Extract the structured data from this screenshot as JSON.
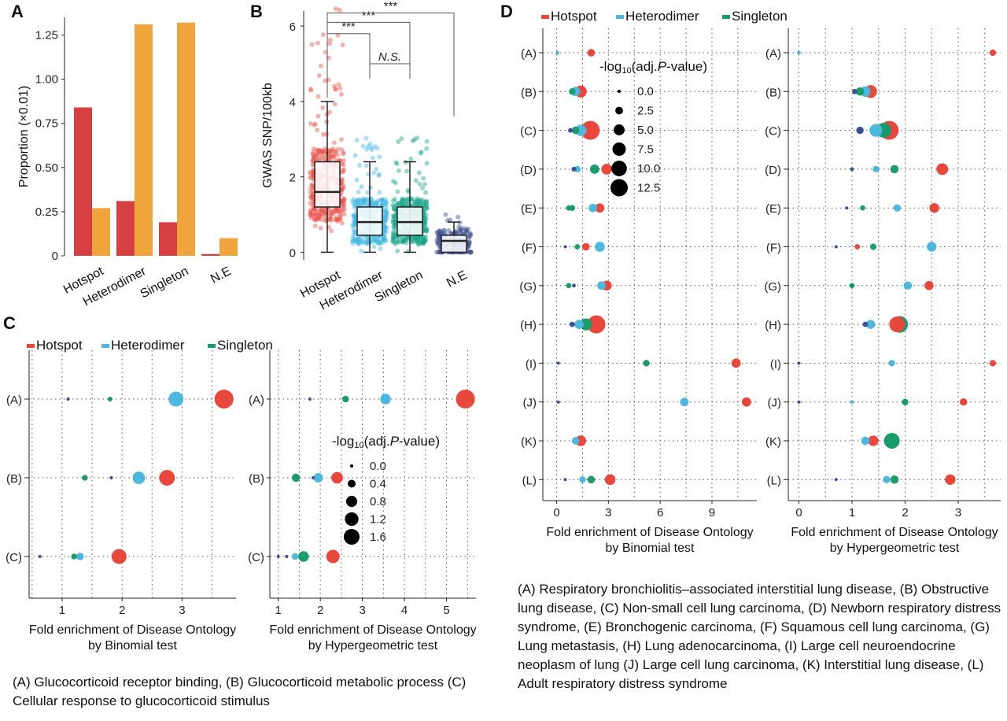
{
  "panelA": {
    "letter": "A",
    "ylabel": "Proportion (×0.01)",
    "categories": [
      "Hotspot",
      "Heterodimer",
      "Singleton",
      "N.E"
    ],
    "yticks": [
      "0",
      "0.25",
      "0.50",
      "0.75",
      "1.00",
      "1.25"
    ],
    "colors": {
      "red": "#d64043",
      "orange": "#efa53b"
    }
  },
  "panelB": {
    "letter": "B",
    "ylabel": "GWAS SNP/100kb",
    "categories": [
      "Hotspot",
      "Heterodimer",
      "Singleton",
      "N.E"
    ],
    "yticks": [
      "0",
      "2",
      "4",
      "6"
    ],
    "sig": [
      "***",
      "***",
      "***",
      "N.S."
    ],
    "colors": [
      "#e8564d",
      "#45b7df",
      "#1aa68b",
      "#3d4f8f"
    ]
  },
  "panelC": {
    "letter": "C",
    "legend": [
      "Hotspot",
      "Heterodimer",
      "Singleton"
    ],
    "rows": [
      "(A)",
      "(B)",
      "(C)"
    ],
    "left_xlabel": [
      "Fold enrichment of Disease Ontology",
      "by  Binomial test"
    ],
    "right_xlabel": [
      "Fold enrichment of Disease Ontology",
      "by  Hypergeometric test"
    ],
    "left_xticks": [
      "1",
      "2",
      "3"
    ],
    "right_xticks": [
      "1",
      "2",
      "3",
      "4",
      "5"
    ],
    "size_title_pre": "-log",
    "size_title_sub": "10",
    "size_title_mid": "(adj.",
    "size_title_p": "P",
    "size_title_post": "-value)",
    "size_values": [
      "0.0",
      "0.4",
      "0.8",
      "1.2",
      "1.6"
    ],
    "caption": "(A) Glucocorticoid receptor binding, (B) Glucocorticoid metabolic process (C) Cellular response to glucocorticoid stimulus"
  },
  "panelD": {
    "letter": "D",
    "legend": [
      "Hotspot",
      "Heterodimer",
      "Singleton"
    ],
    "rows": [
      "(A)",
      "(B)",
      "(C)",
      "(D)",
      "(E)",
      "(F)",
      "(G)",
      "(H)",
      "(I)",
      "(J)",
      "(K)",
      "(L)"
    ],
    "left_xlabel": [
      "Fold enrichment of Disease Ontology",
      "by  Binomial test"
    ],
    "right_xlabel": [
      "Fold enrichment of Disease Ontology",
      "by  Hypergeometric test"
    ],
    "left_xticks": [
      "0",
      "3",
      "6",
      "9"
    ],
    "right_xticks": [
      "0",
      "1",
      "2",
      "3"
    ],
    "size_title_pre": "-log",
    "size_title_sub": "10",
    "size_title_mid": "(adj.",
    "size_title_p": "P",
    "size_title_post": "-value)",
    "size_values": [
      "0.0",
      "2.5",
      "5.0",
      "7.5",
      "10.0",
      "12.5"
    ],
    "caption": "(A) Respiratory bronchiolitis–associated interstitial lung disease, (B) Obstructive lung disease,  (C) Non-small cell lung carcinoma, (D) Newborn respiratory distress syndrome, (E) Bronchogenic carcinoma, (F) Squamous cell lung carcinoma, (G) Lung metastasis, (H) Lung adenocarcinoma, (I) Large cell neuroendocrine neoplasm of lung  (J) Large cell lung carcinoma, (K) Interstitial lung disease, (L) Adult respiratory distress syndrome"
  },
  "colors": {
    "hotspot": "#e8473b",
    "heterodimer": "#4cb8e0",
    "singleton": "#1a9b6c",
    "ne": "#3a4f9a"
  },
  "chart_data": [
    {
      "type": "bar",
      "panel": "A",
      "categories": [
        "Hotspot",
        "Heterodimer",
        "Singleton",
        "N.E"
      ],
      "series": [
        {
          "values": [
            0.84,
            0.31,
            0.19,
            0.01
          ]
        },
        {
          "values": [
            0.27,
            1.31,
            1.32,
            0.1
          ]
        }
      ],
      "ylabel": "Proportion (×0.01)",
      "ylim": [
        0,
        1.35
      ],
      "yticks": [
        0,
        0.25,
        0.5,
        0.75,
        1.0,
        1.25
      ]
    },
    {
      "type": "box",
      "panel": "B",
      "categories": [
        "Hotspot",
        "Heterodimer",
        "Singleton",
        "N.E"
      ],
      "boxes": [
        {
          "min": 0,
          "q1": 1.2,
          "median": 1.6,
          "q3": 2.4,
          "max": 4.0
        },
        {
          "min": 0,
          "q1": 0.45,
          "median": 0.8,
          "q3": 1.2,
          "max": 2.4
        },
        {
          "min": 0,
          "q1": 0.45,
          "median": 0.8,
          "q3": 1.2,
          "max": 2.4
        },
        {
          "min": 0,
          "q1": 0,
          "median": 0.3,
          "q3": 0.45,
          "max": 0.8
        }
      ],
      "comparisons": [
        {
          "a": "Hotspot",
          "b": "Heterodimer",
          "label": "***"
        },
        {
          "a": "Hotspot",
          "b": "Singleton",
          "label": "***"
        },
        {
          "a": "Hotspot",
          "b": "N.E",
          "label": "***"
        },
        {
          "a": "Heterodimer",
          "b": "Singleton",
          "label": "N.S."
        }
      ],
      "ylabel": "GWAS SNP/100kb",
      "ylim": [
        -0.2,
        6.4
      ],
      "yticks": [
        0,
        2,
        4,
        6
      ]
    },
    {
      "type": "scatter",
      "panel": "C-binomial",
      "rows": [
        "(A)",
        "(B)",
        "(C)"
      ],
      "points": [
        {
          "row": 0,
          "x": 3.7,
          "group": "hotspot",
          "size": 1.6
        },
        {
          "row": 0,
          "x": 2.9,
          "group": "heterodimer",
          "size": 1.0
        },
        {
          "row": 0,
          "x": 1.8,
          "group": "singleton",
          "size": 0.1
        },
        {
          "row": 0,
          "x": 1.1,
          "group": "ne",
          "size": 0.05
        },
        {
          "row": 1,
          "x": 2.75,
          "group": "hotspot",
          "size": 1.1
        },
        {
          "row": 1,
          "x": 2.28,
          "group": "heterodimer",
          "size": 0.7
        },
        {
          "row": 1,
          "x": 1.38,
          "group": "singleton",
          "size": 0.15
        },
        {
          "row": 1,
          "x": 1.82,
          "group": "ne",
          "size": 0.05
        },
        {
          "row": 2,
          "x": 1.95,
          "group": "hotspot",
          "size": 1.0
        },
        {
          "row": 2,
          "x": 1.3,
          "group": "heterodimer",
          "size": 0.25
        },
        {
          "row": 2,
          "x": 1.2,
          "group": "singleton",
          "size": 0.15
        },
        {
          "row": 2,
          "x": 0.63,
          "group": "ne",
          "size": 0.02
        }
      ],
      "xlim": [
        0.45,
        3.9
      ],
      "xticks": [
        1,
        2,
        3
      ],
      "xlabel": "Fold enrichment of Disease Ontology by  Binomial test"
    },
    {
      "type": "scatter",
      "panel": "C-hypergeometric",
      "rows": [
        "(A)",
        "(B)",
        "(C)"
      ],
      "points": [
        {
          "row": 0,
          "x": 5.45,
          "group": "hotspot",
          "size": 1.6
        },
        {
          "row": 0,
          "x": 3.55,
          "group": "heterodimer",
          "size": 0.5
        },
        {
          "row": 0,
          "x": 2.6,
          "group": "singleton",
          "size": 0.2
        },
        {
          "row": 0,
          "x": 1.75,
          "group": "ne",
          "size": 0.05
        },
        {
          "row": 1,
          "x": 2.4,
          "group": "hotspot",
          "size": 0.6
        },
        {
          "row": 1,
          "x": 1.95,
          "group": "heterodimer",
          "size": 0.4
        },
        {
          "row": 1,
          "x": 1.42,
          "group": "singleton",
          "size": 0.3
        },
        {
          "row": 1,
          "x": 1.83,
          "group": "ne",
          "size": 0.04
        },
        {
          "row": 2,
          "x": 2.3,
          "group": "hotspot",
          "size": 0.8
        },
        {
          "row": 2,
          "x": 1.6,
          "group": "singleton",
          "size": 0.5
        },
        {
          "row": 2,
          "x": 1.4,
          "group": "heterodimer",
          "size": 0.2
        },
        {
          "row": 2,
          "x": 1.2,
          "group": "ne",
          "size": 0.05
        },
        {
          "row": 2,
          "x": 1.0,
          "group": "ne",
          "size": 0.02
        }
      ],
      "xlim": [
        0.8,
        5.7
      ],
      "xticks": [
        1,
        2,
        3,
        4,
        5
      ],
      "xlabel": "Fold enrichment of Disease Ontology by  Hypergeometric test"
    },
    {
      "type": "scatter",
      "panel": "D-binomial",
      "rows": [
        "(A)",
        "(B)",
        "(C)",
        "(D)",
        "(E)",
        "(F)",
        "(G)",
        "(H)",
        "(I)",
        "(J)",
        "(K)",
        "(L)"
      ],
      "points": [
        {
          "row": 0,
          "x": 2.0,
          "group": "hotspot",
          "size": 2.0
        },
        {
          "row": 0,
          "x": 0.05,
          "group": "heterodimer",
          "size": 0.5
        },
        {
          "row": 1,
          "x": 1.4,
          "group": "hotspot",
          "size": 5.0
        },
        {
          "row": 1,
          "x": 1.1,
          "group": "heterodimer",
          "size": 3.0
        },
        {
          "row": 1,
          "x": 0.9,
          "group": "singleton",
          "size": 1.5
        },
        {
          "row": 2,
          "x": 1.95,
          "group": "hotspot",
          "size": 12.5
        },
        {
          "row": 2,
          "x": 1.4,
          "group": "heterodimer",
          "size": 4.5
        },
        {
          "row": 2,
          "x": 1.1,
          "group": "singleton",
          "size": 2.0
        },
        {
          "row": 2,
          "x": 0.8,
          "group": "ne",
          "size": 0.8
        },
        {
          "row": 3,
          "x": 2.9,
          "group": "hotspot",
          "size": 4.0
        },
        {
          "row": 3,
          "x": 2.2,
          "group": "singleton",
          "size": 3.0
        },
        {
          "row": 3,
          "x": 1.2,
          "group": "heterodimer",
          "size": 1.5
        },
        {
          "row": 3,
          "x": 1.0,
          "group": "ne",
          "size": 0.8
        },
        {
          "row": 4,
          "x": 2.5,
          "group": "hotspot",
          "size": 3.0
        },
        {
          "row": 4,
          "x": 2.1,
          "group": "heterodimer",
          "size": 2.5
        },
        {
          "row": 4,
          "x": 0.9,
          "group": "singleton",
          "size": 1.2
        },
        {
          "row": 4,
          "x": 0.7,
          "group": "singleton",
          "size": 1.0
        },
        {
          "row": 5,
          "x": 2.5,
          "group": "heterodimer",
          "size": 3.5
        },
        {
          "row": 5,
          "x": 1.7,
          "group": "hotspot",
          "size": 2.0
        },
        {
          "row": 5,
          "x": 1.2,
          "group": "singleton",
          "size": 1.0
        },
        {
          "row": 5,
          "x": 0.5,
          "group": "ne",
          "size": 0.3
        },
        {
          "row": 6,
          "x": 2.9,
          "group": "hotspot",
          "size": 3.5
        },
        {
          "row": 6,
          "x": 2.6,
          "group": "heterodimer",
          "size": 2.5
        },
        {
          "row": 6,
          "x": 1.0,
          "group": "ne",
          "size": 0.5
        },
        {
          "row": 6,
          "x": 0.7,
          "group": "singleton",
          "size": 1.0
        },
        {
          "row": 7,
          "x": 2.3,
          "group": "hotspot",
          "size": 11.5
        },
        {
          "row": 7,
          "x": 1.7,
          "group": "singleton",
          "size": 5.0
        },
        {
          "row": 7,
          "x": 1.3,
          "group": "heterodimer",
          "size": 3.0
        },
        {
          "row": 7,
          "x": 0.9,
          "group": "ne",
          "size": 1.0
        },
        {
          "row": 8,
          "x": 10.4,
          "group": "hotspot",
          "size": 3.0
        },
        {
          "row": 8,
          "x": 5.2,
          "group": "singleton",
          "size": 1.5
        },
        {
          "row": 8,
          "x": 0.1,
          "group": "ne",
          "size": 0.3
        },
        {
          "row": 9,
          "x": 11.0,
          "group": "hotspot",
          "size": 3.0
        },
        {
          "row": 9,
          "x": 7.4,
          "group": "heterodimer",
          "size": 2.5
        },
        {
          "row": 9,
          "x": 0.1,
          "group": "ne",
          "size": 0.3
        },
        {
          "row": 10,
          "x": 1.4,
          "group": "hotspot",
          "size": 4.0
        },
        {
          "row": 10,
          "x": 1.1,
          "group": "heterodimer",
          "size": 2.0
        },
        {
          "row": 11,
          "x": 3.1,
          "group": "hotspot",
          "size": 4.0
        },
        {
          "row": 11,
          "x": 2.0,
          "group": "singleton",
          "size": 2.0
        },
        {
          "row": 11,
          "x": 1.5,
          "group": "heterodimer",
          "size": 1.5
        },
        {
          "row": 11,
          "x": 0.5,
          "group": "ne",
          "size": 0.3
        }
      ],
      "xlim": [
        -0.8,
        11.6
      ],
      "xticks": [
        0,
        3,
        6,
        9
      ],
      "xlabel": "Fold enrichment of Disease Ontology by  Binomial test"
    },
    {
      "type": "scatter",
      "panel": "D-hypergeometric",
      "rows": [
        "(A)",
        "(B)",
        "(C)",
        "(D)",
        "(E)",
        "(F)",
        "(G)",
        "(H)",
        "(I)",
        "(J)",
        "(K)",
        "(L)"
      ],
      "points": [
        {
          "row": 0,
          "x": 3.65,
          "group": "hotspot",
          "size": 1.5
        },
        {
          "row": 0,
          "x": 0.0,
          "group": "heterodimer",
          "size": 0.5
        },
        {
          "row": 1,
          "x": 1.35,
          "group": "hotspot",
          "size": 6.0
        },
        {
          "row": 1,
          "x": 1.25,
          "group": "heterodimer",
          "size": 4.0
        },
        {
          "row": 1,
          "x": 1.15,
          "group": "singleton",
          "size": 2.5
        },
        {
          "row": 1,
          "x": 1.05,
          "group": "ne",
          "size": 1.0
        },
        {
          "row": 2,
          "x": 1.7,
          "group": "hotspot",
          "size": 13.0
        },
        {
          "row": 2,
          "x": 1.6,
          "group": "singleton",
          "size": 8.0
        },
        {
          "row": 2,
          "x": 1.45,
          "group": "heterodimer",
          "size": 6.0
        },
        {
          "row": 2,
          "x": 1.15,
          "group": "ne",
          "size": 2.0
        },
        {
          "row": 3,
          "x": 2.7,
          "group": "hotspot",
          "size": 5.0
        },
        {
          "row": 3,
          "x": 1.8,
          "group": "singleton",
          "size": 2.5
        },
        {
          "row": 3,
          "x": 1.45,
          "group": "heterodimer",
          "size": 1.5
        },
        {
          "row": 3,
          "x": 1.0,
          "group": "ne",
          "size": 0.5
        },
        {
          "row": 4,
          "x": 2.55,
          "group": "hotspot",
          "size": 3.5
        },
        {
          "row": 4,
          "x": 1.85,
          "group": "heterodimer",
          "size": 2.0
        },
        {
          "row": 4,
          "x": 1.2,
          "group": "singleton",
          "size": 1.0
        },
        {
          "row": 4,
          "x": 0.9,
          "group": "ne",
          "size": 0.3
        },
        {
          "row": 5,
          "x": 2.5,
          "group": "heterodimer",
          "size": 3.5
        },
        {
          "row": 5,
          "x": 1.4,
          "group": "singleton",
          "size": 1.5
        },
        {
          "row": 5,
          "x": 1.1,
          "group": "hotspot",
          "size": 1.0
        },
        {
          "row": 5,
          "x": 0.7,
          "group": "ne",
          "size": 0.3
        },
        {
          "row": 6,
          "x": 2.45,
          "group": "hotspot",
          "size": 3.0
        },
        {
          "row": 6,
          "x": 2.05,
          "group": "heterodimer",
          "size": 2.5
        },
        {
          "row": 6,
          "x": 1.0,
          "group": "singleton",
          "size": 1.0
        },
        {
          "row": 7,
          "x": 1.9,
          "group": "singleton",
          "size": 10.0
        },
        {
          "row": 7,
          "x": 1.85,
          "group": "hotspot",
          "size": 9.0
        },
        {
          "row": 7,
          "x": 1.35,
          "group": "heterodimer",
          "size": 3.0
        },
        {
          "row": 7,
          "x": 1.25,
          "group": "ne",
          "size": 1.0
        },
        {
          "row": 8,
          "x": 3.65,
          "group": "hotspot",
          "size": 1.5
        },
        {
          "row": 8,
          "x": 1.75,
          "group": "heterodimer",
          "size": 1.5
        },
        {
          "row": 8,
          "x": 0.0,
          "group": "ne",
          "size": 0.3
        },
        {
          "row": 9,
          "x": 3.1,
          "group": "hotspot",
          "size": 2.0
        },
        {
          "row": 9,
          "x": 2.0,
          "group": "singleton",
          "size": 1.5
        },
        {
          "row": 9,
          "x": 1.0,
          "group": "heterodimer",
          "size": 0.5
        },
        {
          "row": 9,
          "x": 0.0,
          "group": "ne",
          "size": 0.3
        },
        {
          "row": 10,
          "x": 1.75,
          "group": "singleton",
          "size": 9.0
        },
        {
          "row": 10,
          "x": 1.4,
          "group": "hotspot",
          "size": 4.0
        },
        {
          "row": 10,
          "x": 1.25,
          "group": "heterodimer",
          "size": 2.5
        },
        {
          "row": 11,
          "x": 2.85,
          "group": "hotspot",
          "size": 4.0
        },
        {
          "row": 11,
          "x": 1.8,
          "group": "singleton",
          "size": 2.5
        },
        {
          "row": 11,
          "x": 1.65,
          "group": "heterodimer",
          "size": 2.0
        },
        {
          "row": 11,
          "x": 0.7,
          "group": "ne",
          "size": 0.3
        }
      ],
      "xlim": [
        -0.2,
        3.8
      ],
      "xticks": [
        0,
        1,
        2,
        3
      ],
      "xlabel": "Fold enrichment of Disease Ontology by  Hypergeometric test"
    }
  ]
}
